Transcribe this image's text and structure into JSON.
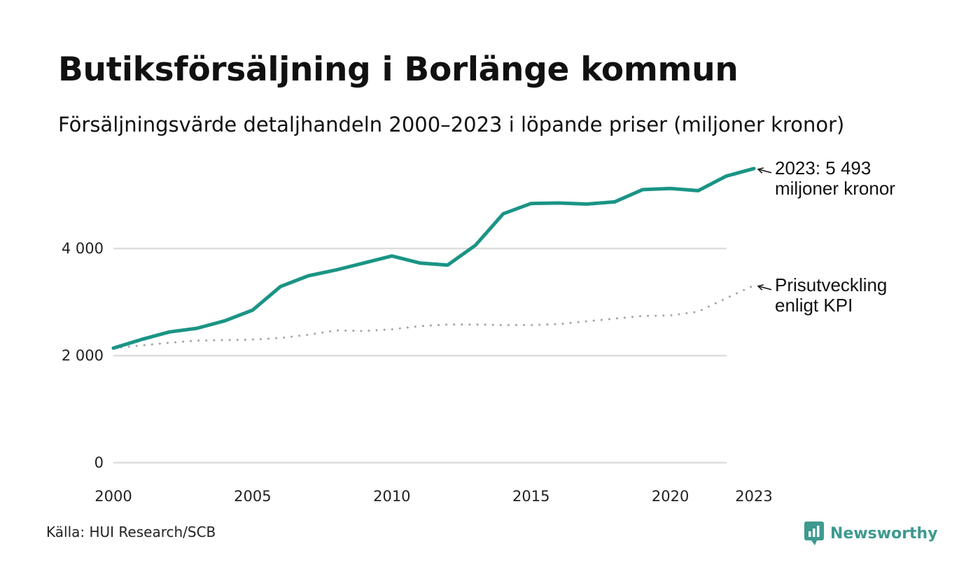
{
  "title": "Butiksförsäljning i Borlänge kommun",
  "subtitle": "Försäljningsvärde detaljhandeln 2000–2023 i löpande priser (miljoner kronor)",
  "source": "Källa: HUI Research/SCB",
  "brand": "Newsworthy",
  "colors": {
    "sales": "#1a9485",
    "kpi": "#a5a5a5",
    "grid": "#dddddd",
    "brand": "#3d9a8f"
  },
  "chart_data": {
    "type": "line",
    "x": [
      2000,
      2001,
      2002,
      2003,
      2004,
      2005,
      2006,
      2007,
      2008,
      2009,
      2010,
      2011,
      2012,
      2013,
      2014,
      2015,
      2016,
      2017,
      2018,
      2019,
      2020,
      2021,
      2022,
      2023
    ],
    "series": [
      {
        "name": "Försäljningsvärde",
        "style": "solid",
        "values": [
          2140,
          2300,
          2440,
          2510,
          2650,
          2850,
          3290,
          3490,
          3600,
          3730,
          3860,
          3730,
          3690,
          4060,
          4650,
          4840,
          4850,
          4830,
          4870,
          5100,
          5120,
          5080,
          5350,
          5493
        ]
      },
      {
        "name": "Prisutveckling enligt KPI",
        "style": "dotted",
        "values": [
          2140,
          2190,
          2240,
          2280,
          2290,
          2300,
          2330,
          2390,
          2470,
          2460,
          2490,
          2550,
          2580,
          2580,
          2570,
          2570,
          2590,
          2640,
          2690,
          2740,
          2750,
          2820,
          3070,
          3310
        ]
      }
    ],
    "ylim": [
      0,
      5600
    ],
    "yticks": [
      0,
      2000,
      4000
    ],
    "ytick_labels": [
      "0",
      "2 000",
      "4 000"
    ],
    "xticks": [
      2000,
      2005,
      2010,
      2015,
      2020,
      2023
    ],
    "xtick_labels": [
      "2000",
      "2005",
      "2010",
      "2015",
      "2020",
      "2023"
    ],
    "annotations": [
      {
        "series": 0,
        "lines": [
          "2023: 5 493",
          "miljoner kronor"
        ]
      },
      {
        "series": 1,
        "lines": [
          "Prisutveckling",
          "enligt KPI"
        ]
      }
    ]
  }
}
